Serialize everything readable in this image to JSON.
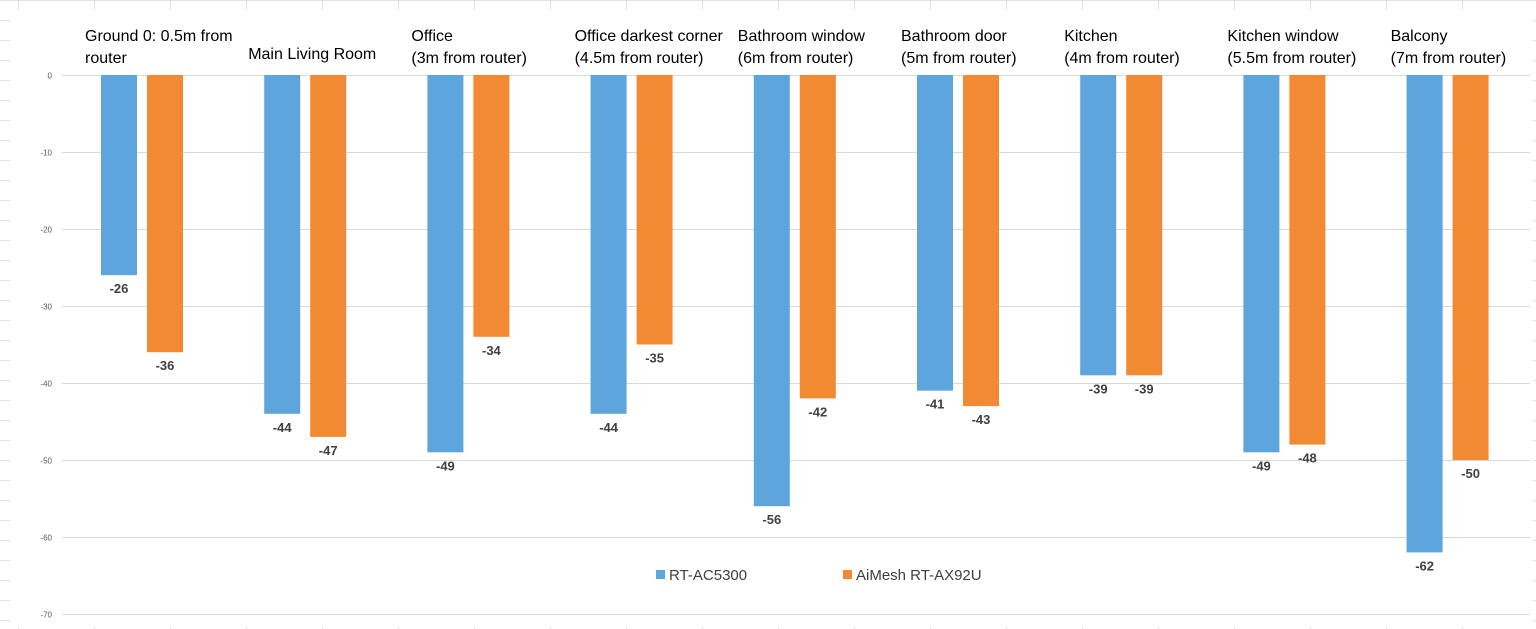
{
  "chart_data": {
    "type": "bar",
    "categories": [
      [
        "Ground 0: 0.5m from",
        "router"
      ],
      [
        "Main Living Room"
      ],
      [
        "Office",
        "(3m from router)"
      ],
      [
        "Office darkest corner",
        "(4.5m from router)"
      ],
      [
        "Bathroom window",
        "(6m from router)"
      ],
      [
        "Bathroom door",
        "(5m from router)"
      ],
      [
        "Kitchen",
        "(4m from router)"
      ],
      [
        "Kitchen window",
        "(5.5m from router)"
      ],
      [
        "Balcony",
        "(7m from router)"
      ]
    ],
    "series": [
      {
        "name": "RT-AC5300",
        "color": "#5ea5de",
        "values": [
          -26,
          -44,
          -49,
          -44,
          -56,
          -41,
          -39,
          -49,
          -62
        ]
      },
      {
        "name": "AiMesh RT-AX92U",
        "color": "#f28a33",
        "values": [
          -36,
          -47,
          -34,
          -35,
          -42,
          -43,
          -39,
          -48,
          -50
        ]
      }
    ],
    "ylim": [
      -70,
      0
    ],
    "yticks": [
      0,
      -10,
      -20,
      -30,
      -40,
      -50,
      -60,
      -70
    ],
    "grid": true,
    "legend": "bottom-center",
    "xlabel": "",
    "ylabel": ""
  }
}
